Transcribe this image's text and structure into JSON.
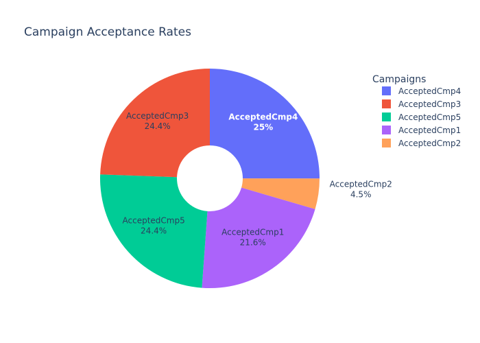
{
  "chart_data": {
    "type": "pie",
    "hole": true,
    "title": "Campaign Acceptance Rates",
    "legend": {
      "title": "Campaigns",
      "placement": "top-right"
    },
    "slices": [
      {
        "label": "AcceptedCmp4",
        "percent_label": "25%",
        "value": 25.0,
        "color": "#636efa",
        "text_color": "#ffffff",
        "text_bold": true,
        "label_position": "inside"
      },
      {
        "label": "AcceptedCmp2",
        "percent_label": "4.5%",
        "value": 4.5,
        "color": "#ffa15a",
        "text_color": "#2a3f5f",
        "text_bold": false,
        "label_position": "outside"
      },
      {
        "label": "AcceptedCmp1",
        "percent_label": "21.6%",
        "value": 21.6,
        "color": "#ab63fa",
        "text_color": "#2a3f5f",
        "text_bold": false,
        "label_position": "inside"
      },
      {
        "label": "AcceptedCmp5",
        "percent_label": "24.4%",
        "value": 24.4,
        "color": "#00cc96",
        "text_color": "#2a3f5f",
        "text_bold": false,
        "label_position": "inside"
      },
      {
        "label": "AcceptedCmp3",
        "percent_label": "24.4%",
        "value": 24.4,
        "color": "#ef553b",
        "text_color": "#2a3f5f",
        "text_bold": false,
        "label_position": "inside"
      }
    ],
    "legend_order": [
      "AcceptedCmp4",
      "AcceptedCmp3",
      "AcceptedCmp5",
      "AcceptedCmp1",
      "AcceptedCmp2"
    ]
  }
}
